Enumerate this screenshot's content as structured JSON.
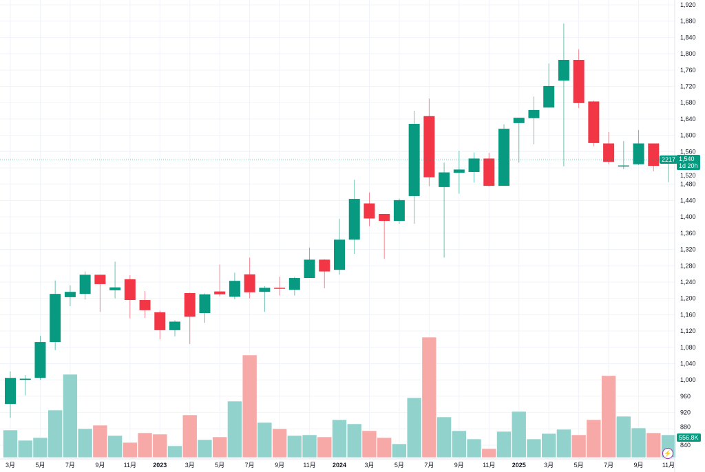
{
  "chart_data": {
    "type": "candlestick",
    "interval": "monthly",
    "x": [
      "2022-03",
      "2022-04",
      "2022-05",
      "2022-06",
      "2022-07",
      "2022-08",
      "2022-09",
      "2022-10",
      "2022-11",
      "2022-12",
      "2023-01",
      "2023-02",
      "2023-03",
      "2023-04",
      "2023-05",
      "2023-06",
      "2023-07",
      "2023-08",
      "2023-09",
      "2023-10",
      "2023-11",
      "2023-12",
      "2024-01",
      "2024-02",
      "2024-03",
      "2024-04",
      "2024-05",
      "2024-06",
      "2024-07",
      "2024-08",
      "2024-09",
      "2024-10",
      "2024-11",
      "2024-12",
      "2025-01",
      "2025-02",
      "2025-03",
      "2025-04",
      "2025-05",
      "2025-06",
      "2025-07",
      "2025-08",
      "2025-09",
      "2025-10",
      "2025-11"
    ],
    "open": [
      941,
      1000,
      1005,
      1093,
      1203,
      1211,
      1258,
      1220,
      1247,
      1196,
      1166,
      1122,
      1213,
      1164,
      1217,
      1204,
      1259,
      1216,
      1226,
      1221,
      1250,
      1295,
      1270,
      1344,
      1433,
      1407,
      1390,
      1451,
      1647,
      1473,
      1508,
      1510,
      1543,
      1476,
      1630,
      1642,
      1668,
      1734,
      1785,
      1683,
      1580,
      1525,
      1529,
      1580,
      1538
    ],
    "high": [
      1021,
      1012,
      1108,
      1244,
      1232,
      1266,
      1258,
      1290,
      1257,
      1218,
      1170,
      1146,
      1214,
      1212,
      1283,
      1263,
      1300,
      1230,
      1253,
      1253,
      1325,
      1296,
      1395,
      1491,
      1460,
      1407,
      1445,
      1660,
      1690,
      1533,
      1562,
      1558,
      1557,
      1627,
      1643,
      1695,
      1776,
      1874,
      1811,
      1685,
      1608,
      1586,
      1613,
      1580,
      1547
    ],
    "low": [
      907,
      962,
      1000,
      1073,
      1181,
      1197,
      1167,
      1200,
      1151,
      1152,
      1100,
      1107,
      1088,
      1140,
      1205,
      1198,
      1200,
      1167,
      1207,
      1207,
      1255,
      1225,
      1258,
      1309,
      1377,
      1297,
      1383,
      1383,
      1475,
      1300,
      1457,
      1484,
      1475,
      1476,
      1533,
      1578,
      1668,
      1524,
      1667,
      1573,
      1529,
      1517,
      1527,
      1512,
      1485
    ],
    "close": [
      1005,
      1003,
      1093,
      1211,
      1216,
      1258,
      1235,
      1227,
      1196,
      1171,
      1122,
      1143,
      1155,
      1210,
      1210,
      1243,
      1215,
      1226,
      1224,
      1250,
      1295,
      1266,
      1344,
      1444,
      1396,
      1390,
      1441,
      1628,
      1497,
      1509,
      1516,
      1543,
      1476,
      1616,
      1643,
      1662,
      1721,
      1785,
      1679,
      1581,
      1535,
      1526,
      1580,
      1525,
      1540
    ],
    "volume_k": [
      675,
      422,
      489,
      1164,
      2041,
      709,
      793,
      540,
      371,
      607,
      574,
      287,
      1046,
      439,
      506,
      1383,
      2514,
      860,
      709,
      540,
      557,
      506,
      928,
      827,
      658,
      489,
      337,
      1468,
      2952,
      995,
      658,
      455,
      219,
      641,
      1130,
      455,
      590,
      692,
      557,
      928,
      2008,
      1012,
      725,
      607,
      556.8
    ],
    "x_tick_labels": [
      "3月",
      "5月",
      "7月",
      "9月",
      "11月",
      "2023",
      "3月",
      "5月",
      "7月",
      "9月",
      "11月",
      "2024",
      "3月",
      "5月",
      "7月",
      "9月",
      "11月",
      "2025",
      "3月",
      "5月",
      "7月",
      "9月",
      "11月"
    ],
    "x_tick_index": [
      0,
      2,
      4,
      6,
      8,
      10,
      12,
      14,
      16,
      18,
      20,
      22,
      24,
      26,
      28,
      30,
      32,
      34,
      36,
      38,
      40,
      42,
      44
    ],
    "x_tick_year": [
      false,
      false,
      false,
      false,
      false,
      true,
      false,
      false,
      false,
      false,
      false,
      true,
      false,
      false,
      false,
      false,
      false,
      true,
      false,
      false,
      false,
      false,
      false
    ],
    "y_tick_labels": [
      "1,920",
      "1,880",
      "1,840",
      "1,800",
      "1,760",
      "1,720",
      "1,680",
      "1,640",
      "1,600",
      "1,560",
      "1,520",
      "1,480",
      "1,440",
      "1,400",
      "1,360",
      "1,320",
      "1,280",
      "1,240",
      "1,200",
      "1,160",
      "1,120",
      "1,080",
      "1,040",
      "1,000",
      "960",
      "920",
      "880",
      "840"
    ],
    "ylim": [
      840,
      1920
    ],
    "grid": true,
    "axis_position": "right",
    "last_price": "1,540",
    "countdown": "1d 20h",
    "last_price_badge": "2217",
    "last_volume_label": "556.8K",
    "colors": {
      "up": "#089981",
      "down": "#f23645",
      "up_volume": "#92d2cc",
      "down_volume": "#f7a9a7",
      "grid": "#f0f3fa",
      "price_line": "#089981"
    }
  },
  "icons": {
    "lightning": "⚡"
  }
}
